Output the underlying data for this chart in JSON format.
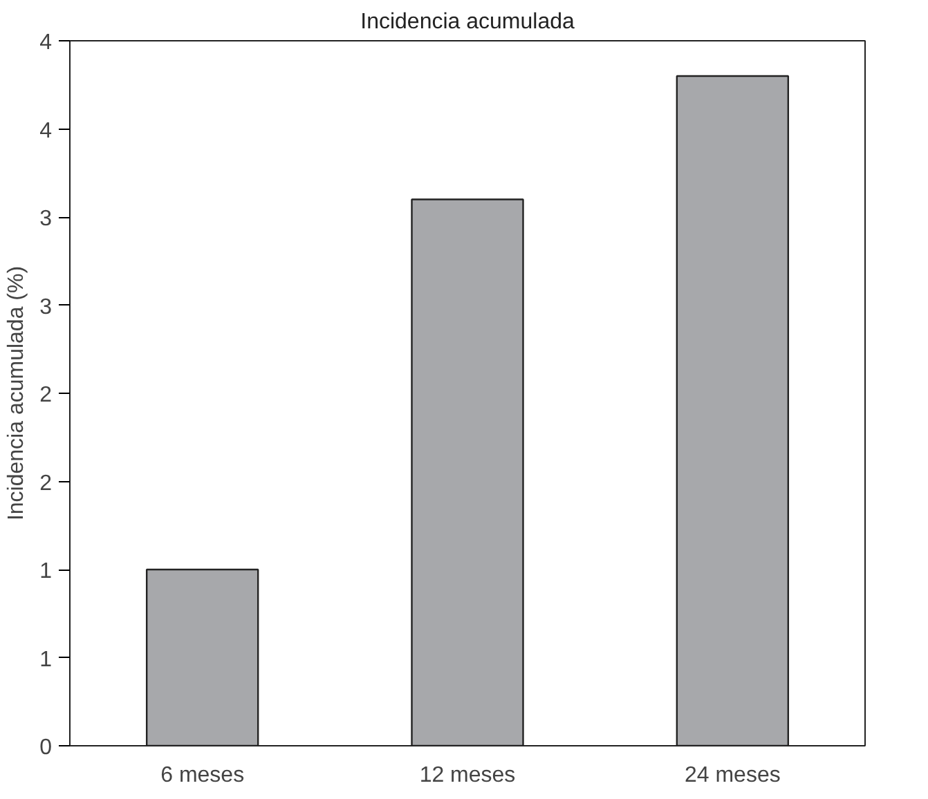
{
  "chart_data": {
    "type": "bar",
    "title": "Incidencia acumulada",
    "ylabel": "Incidencia acumulada (%)",
    "categories": [
      "6 meses",
      "12 meses",
      "24 meses"
    ],
    "values": [
      1.0,
      3.1,
      3.8
    ],
    "color": "#a7a8ab",
    "ylim": [
      0,
      4
    ],
    "yticks": [
      0,
      {
        "value": 0.5,
        "label": "1"
      },
      1,
      {
        "value": 1.5,
        "label": "2"
      },
      2,
      {
        "value": 2.5,
        "label": "3"
      },
      3,
      {
        "value": 3.5,
        "label": "4"
      },
      4
    ],
    "grid": false
  }
}
